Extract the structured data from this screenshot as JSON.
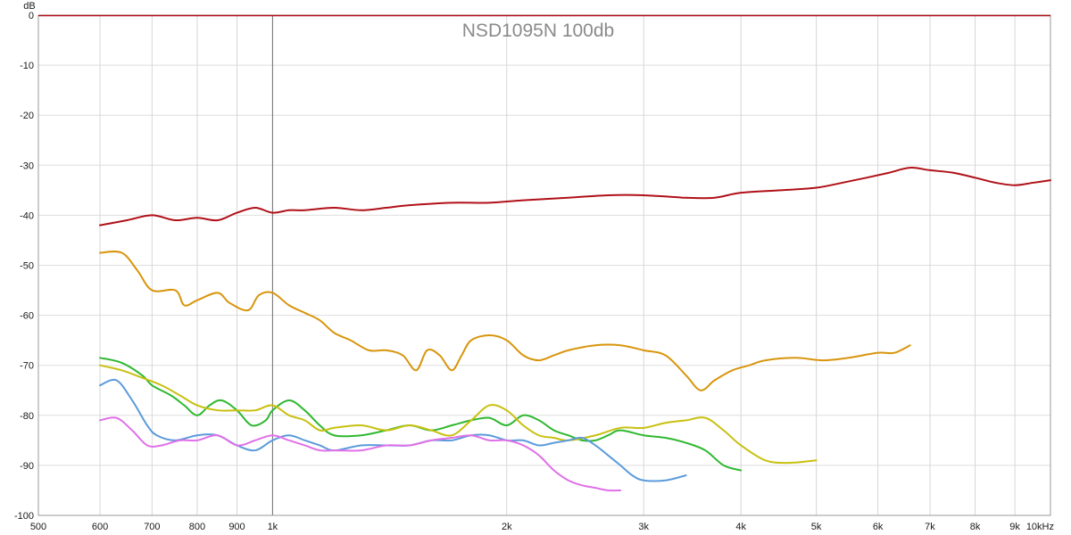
{
  "chart_data": {
    "type": "line",
    "title": "NSD1095N 100db",
    "ylabel": "dB",
    "xscale": "log",
    "xlim": [
      500,
      10000
    ],
    "ylim": [
      -100,
      0
    ],
    "grid": true,
    "x_ticks": [
      {
        "value": 500,
        "label": "500"
      },
      {
        "value": 600,
        "label": "600"
      },
      {
        "value": 700,
        "label": "700"
      },
      {
        "value": 800,
        "label": "800"
      },
      {
        "value": 900,
        "label": "900"
      },
      {
        "value": 1000,
        "label": "1k"
      },
      {
        "value": 2000,
        "label": "2k"
      },
      {
        "value": 3000,
        "label": "3k"
      },
      {
        "value": 4000,
        "label": "4k"
      },
      {
        "value": 5000,
        "label": "5k"
      },
      {
        "value": 6000,
        "label": "6k"
      },
      {
        "value": 7000,
        "label": "7k"
      },
      {
        "value": 8000,
        "label": "8k"
      },
      {
        "value": 9000,
        "label": "9k"
      },
      {
        "value": 10000,
        "label": "10kHz"
      }
    ],
    "y_ticks": [
      {
        "value": 0,
        "label": "0"
      },
      {
        "value": -10,
        "label": "-10"
      },
      {
        "value": -20,
        "label": "-20"
      },
      {
        "value": -30,
        "label": "-30"
      },
      {
        "value": -40,
        "label": "-40"
      },
      {
        "value": -50,
        "label": "-50"
      },
      {
        "value": -60,
        "label": "-60"
      },
      {
        "value": -70,
        "label": "-70"
      },
      {
        "value": -80,
        "label": "-80"
      },
      {
        "value": -90,
        "label": "-90"
      },
      {
        "value": -100,
        "label": "-100"
      }
    ],
    "series": [
      {
        "color": "#b01018",
        "points": [
          [
            600,
            -42
          ],
          [
            650,
            -41
          ],
          [
            700,
            -40
          ],
          [
            750,
            -41
          ],
          [
            800,
            -40.5
          ],
          [
            850,
            -41
          ],
          [
            900,
            -39.5
          ],
          [
            950,
            -38.5
          ],
          [
            1000,
            -39.5
          ],
          [
            1050,
            -39
          ],
          [
            1100,
            -39
          ],
          [
            1200,
            -38.5
          ],
          [
            1300,
            -39
          ],
          [
            1400,
            -38.5
          ],
          [
            1500,
            -38
          ],
          [
            1700,
            -37.5
          ],
          [
            1900,
            -37.5
          ],
          [
            2100,
            -37
          ],
          [
            2400,
            -36.5
          ],
          [
            2700,
            -36
          ],
          [
            3000,
            -36
          ],
          [
            3400,
            -36.5
          ],
          [
            3700,
            -36.5
          ],
          [
            4000,
            -35.5
          ],
          [
            4500,
            -35
          ],
          [
            5000,
            -34.5
          ],
          [
            5400,
            -33.5
          ],
          [
            5800,
            -32.5
          ],
          [
            6200,
            -31.5
          ],
          [
            6600,
            -30.5
          ],
          [
            7000,
            -31
          ],
          [
            7500,
            -31.5
          ],
          [
            8000,
            -32.5
          ],
          [
            8500,
            -33.5
          ],
          [
            9000,
            -34
          ],
          [
            9500,
            -33.5
          ],
          [
            10000,
            -33
          ]
        ]
      },
      {
        "color": "#d8950c",
        "points": [
          [
            600,
            -47.5
          ],
          [
            640,
            -47.5
          ],
          [
            670,
            -51
          ],
          [
            700,
            -55
          ],
          [
            750,
            -55
          ],
          [
            770,
            -58
          ],
          [
            800,
            -57
          ],
          [
            850,
            -55.5
          ],
          [
            880,
            -57.5
          ],
          [
            930,
            -59
          ],
          [
            960,
            -56
          ],
          [
            1000,
            -55.5
          ],
          [
            1050,
            -58
          ],
          [
            1100,
            -59.5
          ],
          [
            1150,
            -61
          ],
          [
            1200,
            -63.5
          ],
          [
            1260,
            -65
          ],
          [
            1330,
            -67
          ],
          [
            1400,
            -67
          ],
          [
            1470,
            -68
          ],
          [
            1530,
            -71
          ],
          [
            1580,
            -67
          ],
          [
            1640,
            -68
          ],
          [
            1700,
            -71
          ],
          [
            1750,
            -68
          ],
          [
            1800,
            -65
          ],
          [
            1900,
            -64
          ],
          [
            2000,
            -65
          ],
          [
            2100,
            -68
          ],
          [
            2200,
            -69
          ],
          [
            2300,
            -68
          ],
          [
            2400,
            -67
          ],
          [
            2600,
            -66
          ],
          [
            2800,
            -66
          ],
          [
            3000,
            -67
          ],
          [
            3200,
            -68
          ],
          [
            3400,
            -72
          ],
          [
            3550,
            -75
          ],
          [
            3700,
            -73
          ],
          [
            3900,
            -71
          ],
          [
            4100,
            -70
          ],
          [
            4300,
            -69
          ],
          [
            4700,
            -68.5
          ],
          [
            5100,
            -69
          ],
          [
            5500,
            -68.5
          ],
          [
            6000,
            -67.5
          ],
          [
            6300,
            -67.5
          ],
          [
            6600,
            -66
          ]
        ]
      },
      {
        "color": "#2eb830",
        "points": [
          [
            600,
            -68.5
          ],
          [
            640,
            -69.5
          ],
          [
            680,
            -72
          ],
          [
            700,
            -74
          ],
          [
            740,
            -76
          ],
          [
            770,
            -78
          ],
          [
            800,
            -80
          ],
          [
            830,
            -78
          ],
          [
            860,
            -77
          ],
          [
            900,
            -79
          ],
          [
            940,
            -82
          ],
          [
            980,
            -81
          ],
          [
            1000,
            -79
          ],
          [
            1050,
            -77
          ],
          [
            1100,
            -79
          ],
          [
            1150,
            -82
          ],
          [
            1200,
            -84
          ],
          [
            1300,
            -84
          ],
          [
            1400,
            -83
          ],
          [
            1500,
            -82
          ],
          [
            1600,
            -83
          ],
          [
            1700,
            -82
          ],
          [
            1800,
            -81
          ],
          [
            1900,
            -80.5
          ],
          [
            2000,
            -82
          ],
          [
            2100,
            -80
          ],
          [
            2200,
            -81
          ],
          [
            2300,
            -83
          ],
          [
            2400,
            -84
          ],
          [
            2500,
            -85
          ],
          [
            2600,
            -85
          ],
          [
            2700,
            -84
          ],
          [
            2800,
            -83
          ],
          [
            3000,
            -84
          ],
          [
            3200,
            -84.5
          ],
          [
            3400,
            -85.5
          ],
          [
            3600,
            -87
          ],
          [
            3800,
            -90
          ],
          [
            4000,
            -91
          ]
        ]
      },
      {
        "color": "#c8c010",
        "points": [
          [
            600,
            -70
          ],
          [
            640,
            -71
          ],
          [
            680,
            -72.5
          ],
          [
            720,
            -74
          ],
          [
            760,
            -76
          ],
          [
            800,
            -78
          ],
          [
            850,
            -79
          ],
          [
            900,
            -79
          ],
          [
            950,
            -79
          ],
          [
            1000,
            -78
          ],
          [
            1050,
            -80
          ],
          [
            1100,
            -81
          ],
          [
            1150,
            -83
          ],
          [
            1200,
            -82.5
          ],
          [
            1300,
            -82
          ],
          [
            1400,
            -83
          ],
          [
            1500,
            -82
          ],
          [
            1600,
            -83
          ],
          [
            1700,
            -84
          ],
          [
            1800,
            -81
          ],
          [
            1900,
            -78
          ],
          [
            2000,
            -79
          ],
          [
            2100,
            -82
          ],
          [
            2200,
            -84
          ],
          [
            2300,
            -84.5
          ],
          [
            2400,
            -85
          ],
          [
            2600,
            -84
          ],
          [
            2800,
            -82.5
          ],
          [
            3000,
            -82.5
          ],
          [
            3200,
            -81.5
          ],
          [
            3400,
            -81
          ],
          [
            3600,
            -80.5
          ],
          [
            3800,
            -83
          ],
          [
            4000,
            -86
          ],
          [
            4300,
            -89
          ],
          [
            4600,
            -89.5
          ],
          [
            5000,
            -89
          ]
        ]
      },
      {
        "color": "#5b9bdb",
        "points": [
          [
            600,
            -74
          ],
          [
            630,
            -73
          ],
          [
            660,
            -77
          ],
          [
            690,
            -82
          ],
          [
            710,
            -84
          ],
          [
            750,
            -85
          ],
          [
            800,
            -84
          ],
          [
            850,
            -84
          ],
          [
            900,
            -86
          ],
          [
            950,
            -87
          ],
          [
            1000,
            -85
          ],
          [
            1050,
            -84
          ],
          [
            1100,
            -85
          ],
          [
            1150,
            -86
          ],
          [
            1200,
            -87
          ],
          [
            1300,
            -86
          ],
          [
            1400,
            -86
          ],
          [
            1500,
            -86
          ],
          [
            1600,
            -85
          ],
          [
            1700,
            -85
          ],
          [
            1800,
            -84
          ],
          [
            1900,
            -84
          ],
          [
            2000,
            -85
          ],
          [
            2100,
            -85
          ],
          [
            2200,
            -86
          ],
          [
            2300,
            -85.5
          ],
          [
            2400,
            -85
          ],
          [
            2500,
            -84.5
          ],
          [
            2600,
            -86
          ],
          [
            2700,
            -88
          ],
          [
            2800,
            -90
          ],
          [
            2900,
            -92
          ],
          [
            3000,
            -93
          ],
          [
            3200,
            -93
          ],
          [
            3400,
            -92
          ]
        ]
      },
      {
        "color": "#e070e8",
        "points": [
          [
            600,
            -81
          ],
          [
            630,
            -80.5
          ],
          [
            660,
            -83
          ],
          [
            690,
            -86
          ],
          [
            720,
            -86
          ],
          [
            760,
            -85
          ],
          [
            800,
            -85
          ],
          [
            850,
            -84
          ],
          [
            900,
            -86
          ],
          [
            950,
            -85
          ],
          [
            1000,
            -84
          ],
          [
            1050,
            -85
          ],
          [
            1100,
            -86
          ],
          [
            1150,
            -87
          ],
          [
            1200,
            -87
          ],
          [
            1300,
            -87
          ],
          [
            1400,
            -86
          ],
          [
            1500,
            -86
          ],
          [
            1600,
            -85
          ],
          [
            1700,
            -84.5
          ],
          [
            1800,
            -84
          ],
          [
            1900,
            -85
          ],
          [
            2000,
            -85
          ],
          [
            2100,
            -86
          ],
          [
            2200,
            -88
          ],
          [
            2300,
            -91
          ],
          [
            2400,
            -93
          ],
          [
            2500,
            -94
          ],
          [
            2600,
            -94.5
          ],
          [
            2700,
            -95
          ],
          [
            2800,
            -95
          ]
        ]
      }
    ]
  }
}
